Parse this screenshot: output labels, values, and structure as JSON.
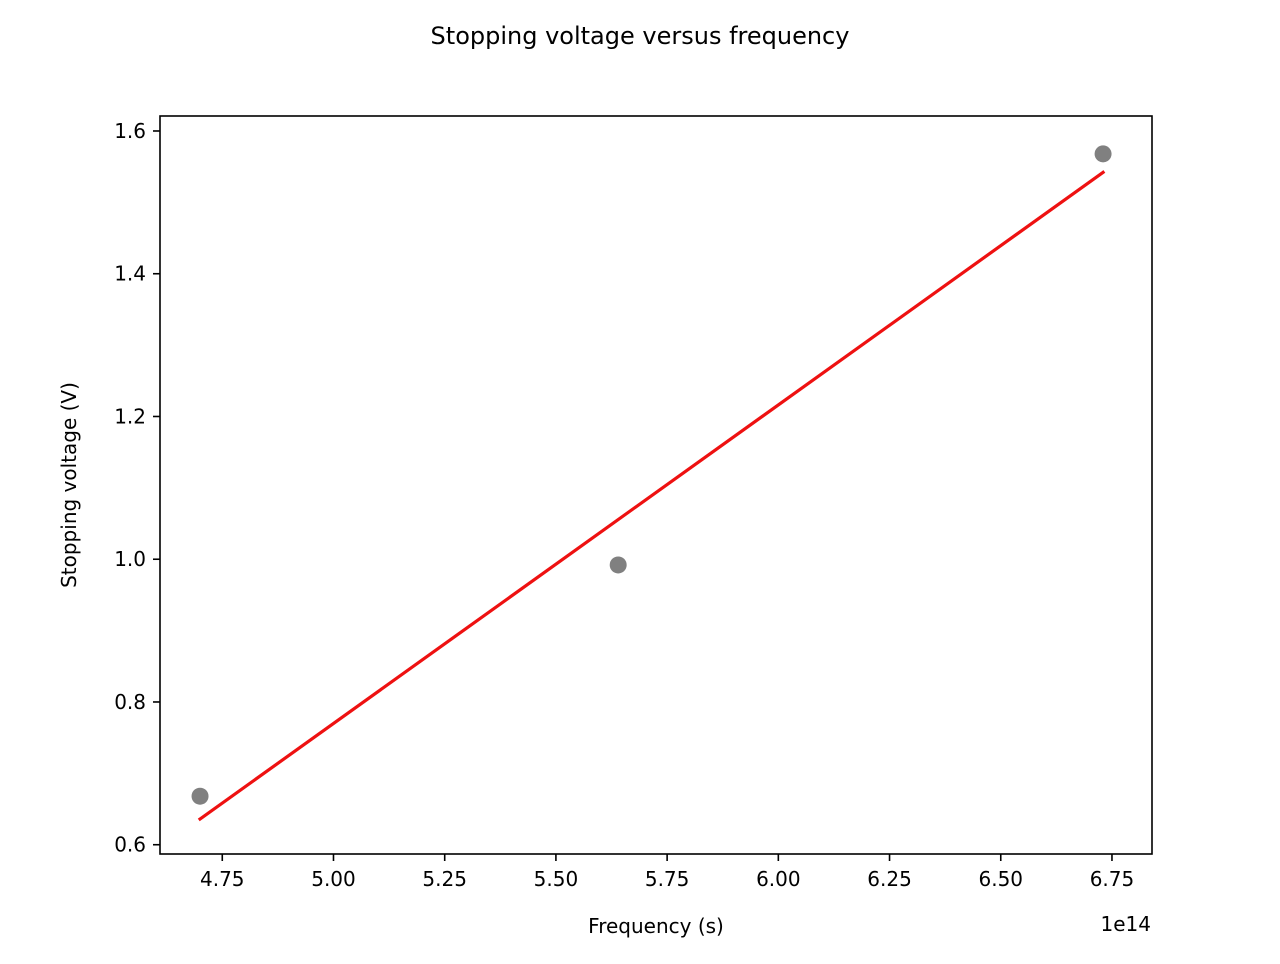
{
  "chart_data": {
    "type": "scatter",
    "title": "Stopping voltage versus frequency",
    "xlabel": "Frequency (s)",
    "ylabel": "Stopping voltage (V)",
    "x_offset_label": "1e14",
    "xlim": [
      4.61,
      6.84
    ],
    "ylim": [
      0.587,
      1.621
    ],
    "xticks": [
      {
        "value": 4.75,
        "label": "4.75"
      },
      {
        "value": 5.0,
        "label": "5.00"
      },
      {
        "value": 5.25,
        "label": "5.25"
      },
      {
        "value": 5.5,
        "label": "5.50"
      },
      {
        "value": 5.75,
        "label": "5.75"
      },
      {
        "value": 6.0,
        "label": "6.00"
      },
      {
        "value": 6.25,
        "label": "6.25"
      },
      {
        "value": 6.5,
        "label": "6.50"
      },
      {
        "value": 6.75,
        "label": "6.75"
      }
    ],
    "yticks": [
      {
        "value": 0.6,
        "label": "0.6"
      },
      {
        "value": 0.8,
        "label": "0.8"
      },
      {
        "value": 1.0,
        "label": "1.0"
      },
      {
        "value": 1.2,
        "label": "1.2"
      },
      {
        "value": 1.4,
        "label": "1.4"
      },
      {
        "value": 1.6,
        "label": "1.6"
      }
    ],
    "grid": false,
    "series": [
      {
        "kind": "scatter",
        "color": "#808080",
        "points": [
          {
            "x": 4.7,
            "y": 0.668
          },
          {
            "x": 5.64,
            "y": 0.992
          },
          {
            "x": 6.73,
            "y": 1.568
          }
        ]
      },
      {
        "kind": "line",
        "color": "#ee1111",
        "points": [
          {
            "x": 4.7,
            "y": 0.636
          },
          {
            "x": 6.73,
            "y": 1.542
          }
        ]
      }
    ]
  }
}
